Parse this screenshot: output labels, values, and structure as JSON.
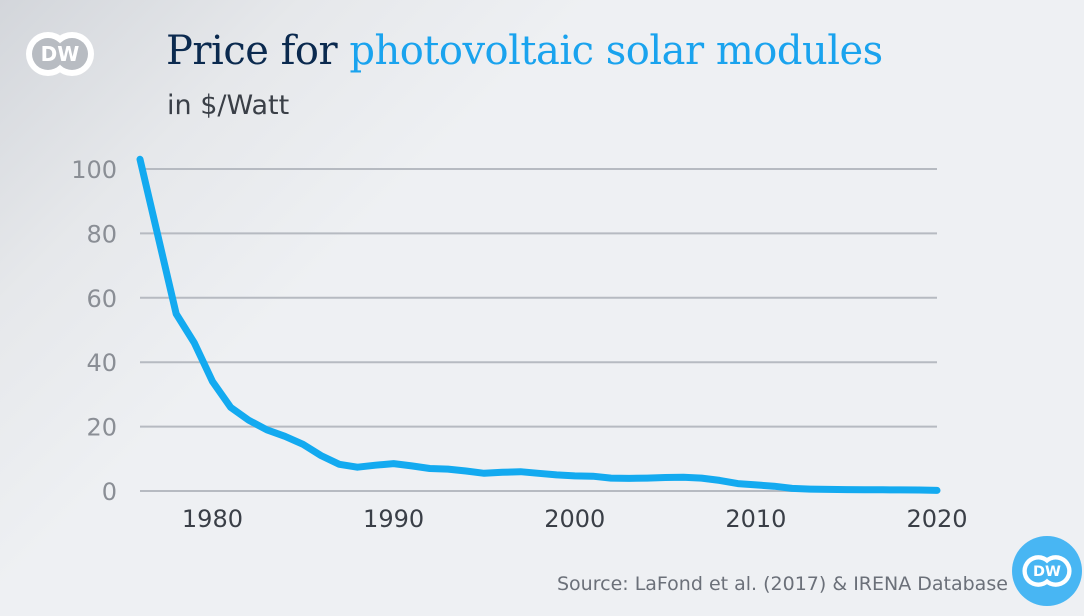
{
  "brand": {
    "logo_text": "DW",
    "accent_color": "#1aa3ee",
    "title_color": "#0b2a4f"
  },
  "title": {
    "part1": "Price for ",
    "part2": "photovoltaic solar modules"
  },
  "subtitle": "in $/Watt",
  "source": "Source: LaFond et al. (2017) & IRENA Database",
  "chart_data": {
    "type": "line",
    "title": "Price for photovoltaic solar modules",
    "subtitle": "in $/Watt",
    "xlabel": "",
    "ylabel": "$/Watt",
    "xlim": [
      1976,
      2020
    ],
    "ylim": [
      0,
      100
    ],
    "grid": true,
    "legend": "none",
    "yticks": [
      0,
      20,
      40,
      60,
      80,
      100
    ],
    "xticks": [
      1980,
      1990,
      2000,
      2010,
      2020
    ],
    "series": [
      {
        "name": "Price ($/Watt)",
        "color": "#13aaf0",
        "x": [
          1976,
          1977,
          1978,
          1979,
          1980,
          1981,
          1982,
          1983,
          1984,
          1985,
          1986,
          1987,
          1988,
          1989,
          1990,
          1991,
          1992,
          1993,
          1994,
          1995,
          1996,
          1997,
          1998,
          1999,
          2000,
          2001,
          2002,
          2003,
          2004,
          2005,
          2006,
          2007,
          2008,
          2009,
          2010,
          2011,
          2012,
          2013,
          2014,
          2015,
          2016,
          2017,
          2018,
          2019,
          2020
        ],
        "y": [
          103,
          79,
          55,
          46,
          34,
          26,
          22,
          19,
          17,
          14.5,
          11,
          8.3,
          7.4,
          8,
          8.5,
          7.8,
          7,
          6.8,
          6.2,
          5.5,
          5.8,
          6,
          5.5,
          5,
          4.7,
          4.6,
          4,
          3.9,
          4,
          4.2,
          4.3,
          4,
          3.3,
          2.3,
          1.9,
          1.5,
          0.8,
          0.6,
          0.5,
          0.45,
          0.4,
          0.38,
          0.35,
          0.3,
          0.2
        ]
      }
    ]
  }
}
